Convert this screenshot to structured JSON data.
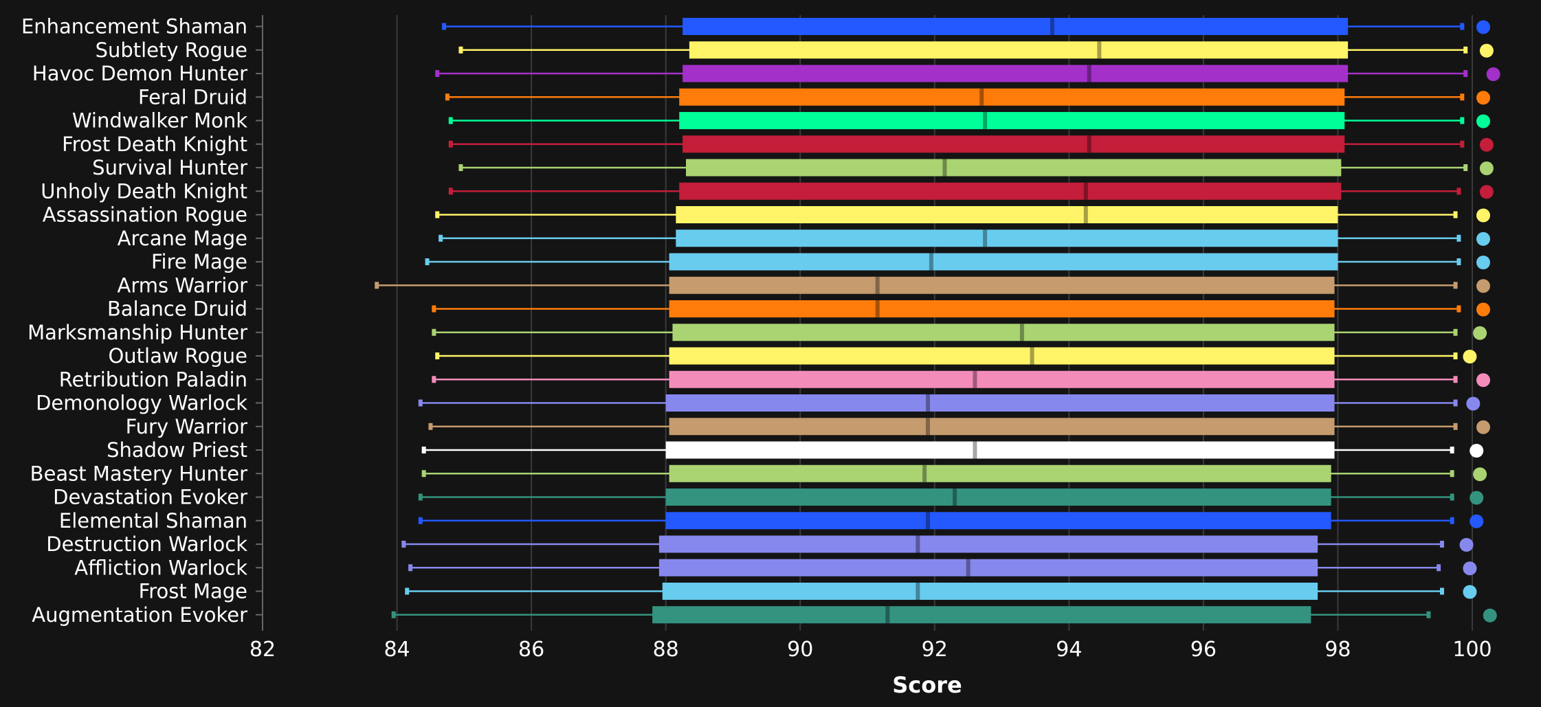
{
  "chart_data": {
    "type": "boxplot",
    "xlabel": "Score",
    "xlim": [
      82,
      100
    ],
    "x_ticks": [
      "82",
      "84",
      "86",
      "88",
      "90",
      "92",
      "94",
      "96",
      "98",
      "100"
    ],
    "grid": true,
    "series": [
      {
        "name": "Enhancement Shaman",
        "color": "#2359ff",
        "min": 84.7,
        "q1": 88.25,
        "median": 93.75,
        "q3": 98.15,
        "max": 99.85,
        "top": 100.0
      },
      {
        "name": "Subtlety Rogue",
        "color": "#fff468",
        "min": 84.95,
        "q1": 88.35,
        "median": 94.45,
        "q3": 98.15,
        "max": 99.9,
        "top": 100.05
      },
      {
        "name": "Havoc Demon Hunter",
        "color": "#a330c9",
        "min": 84.6,
        "q1": 88.25,
        "median": 94.3,
        "q3": 98.15,
        "max": 99.9,
        "top": 100.15
      },
      {
        "name": "Feral Druid",
        "color": "#ff7c0a",
        "min": 84.75,
        "q1": 88.2,
        "median": 92.7,
        "q3": 98.1,
        "max": 99.85,
        "top": 100.0
      },
      {
        "name": "Windwalker Monk",
        "color": "#00ff98",
        "min": 84.8,
        "q1": 88.2,
        "median": 92.75,
        "q3": 98.1,
        "max": 99.85,
        "top": 100.0
      },
      {
        "name": "Frost Death Knight",
        "color": "#c41e3a",
        "min": 84.8,
        "q1": 88.25,
        "median": 94.3,
        "q3": 98.1,
        "max": 99.85,
        "top": 100.05
      },
      {
        "name": "Survival Hunter",
        "color": "#aad372",
        "min": 84.95,
        "q1": 88.3,
        "median": 92.15,
        "q3": 98.05,
        "max": 99.9,
        "top": 100.05
      },
      {
        "name": "Unholy Death Knight",
        "color": "#c41e3a",
        "min": 84.8,
        "q1": 88.2,
        "median": 94.25,
        "q3": 98.05,
        "max": 99.8,
        "top": 100.05
      },
      {
        "name": "Assassination Rogue",
        "color": "#fff468",
        "min": 84.6,
        "q1": 88.15,
        "median": 94.25,
        "q3": 98.0,
        "max": 99.75,
        "top": 100.0
      },
      {
        "name": "Arcane Mage",
        "color": "#68ccef",
        "min": 84.65,
        "q1": 88.15,
        "median": 92.75,
        "q3": 98.0,
        "max": 99.8,
        "top": 100.0
      },
      {
        "name": "Fire Mage",
        "color": "#68ccef",
        "min": 84.45,
        "q1": 88.05,
        "median": 91.95,
        "q3": 98.0,
        "max": 99.8,
        "top": 100.0
      },
      {
        "name": "Arms Warrior",
        "color": "#c69b6d",
        "min": 83.7,
        "q1": 88.05,
        "median": 91.15,
        "q3": 97.95,
        "max": 99.75,
        "top": 100.0
      },
      {
        "name": "Balance Druid",
        "color": "#ff7c0a",
        "min": 84.55,
        "q1": 88.05,
        "median": 91.15,
        "q3": 97.95,
        "max": 99.8,
        "top": 100.0
      },
      {
        "name": "Marksmanship Hunter",
        "color": "#aad372",
        "min": 84.55,
        "q1": 88.1,
        "median": 93.3,
        "q3": 97.95,
        "max": 99.75,
        "top": 99.95
      },
      {
        "name": "Outlaw Rogue",
        "color": "#fff468",
        "min": 84.6,
        "q1": 88.05,
        "median": 93.45,
        "q3": 97.95,
        "max": 99.75,
        "top": 99.8
      },
      {
        "name": "Retribution Paladin",
        "color": "#f48cba",
        "min": 84.55,
        "q1": 88.05,
        "median": 92.6,
        "q3": 97.95,
        "max": 99.75,
        "top": 100.0
      },
      {
        "name": "Demonology Warlock",
        "color": "#8788ee",
        "min": 84.35,
        "q1": 88.0,
        "median": 91.9,
        "q3": 97.95,
        "max": 99.75,
        "top": 99.85
      },
      {
        "name": "Fury Warrior",
        "color": "#c69b6d",
        "min": 84.5,
        "q1": 88.05,
        "median": 91.9,
        "q3": 97.95,
        "max": 99.75,
        "top": 100.0
      },
      {
        "name": "Shadow Priest",
        "color": "#ffffff",
        "min": 84.4,
        "q1": 88.0,
        "median": 92.6,
        "q3": 97.95,
        "max": 99.7,
        "top": 99.9
      },
      {
        "name": "Beast Mastery Hunter",
        "color": "#aad372",
        "min": 84.4,
        "q1": 88.05,
        "median": 91.85,
        "q3": 97.9,
        "max": 99.7,
        "top": 99.95
      },
      {
        "name": "Devastation Evoker",
        "color": "#33937f",
        "min": 84.35,
        "q1": 88.0,
        "median": 92.3,
        "q3": 97.9,
        "max": 99.7,
        "top": 99.9
      },
      {
        "name": "Elemental Shaman",
        "color": "#2359ff",
        "min": 84.35,
        "q1": 88.0,
        "median": 91.9,
        "q3": 97.9,
        "max": 99.7,
        "top": 99.9
      },
      {
        "name": "Destruction Warlock",
        "color": "#8788ee",
        "min": 84.1,
        "q1": 87.9,
        "median": 91.75,
        "q3": 97.7,
        "max": 99.55,
        "top": 99.75
      },
      {
        "name": "Affliction Warlock",
        "color": "#8788ee",
        "min": 84.2,
        "q1": 87.9,
        "median": 92.5,
        "q3": 97.7,
        "max": 99.5,
        "top": 99.8
      },
      {
        "name": "Frost Mage",
        "color": "#68ccef",
        "min": 84.15,
        "q1": 87.95,
        "median": 91.75,
        "q3": 97.7,
        "max": 99.55,
        "top": 99.8
      },
      {
        "name": "Augmentation Evoker",
        "color": "#33937f",
        "min": 83.95,
        "q1": 87.8,
        "median": 91.3,
        "q3": 97.6,
        "max": 99.35,
        "top": 100.1
      }
    ]
  }
}
